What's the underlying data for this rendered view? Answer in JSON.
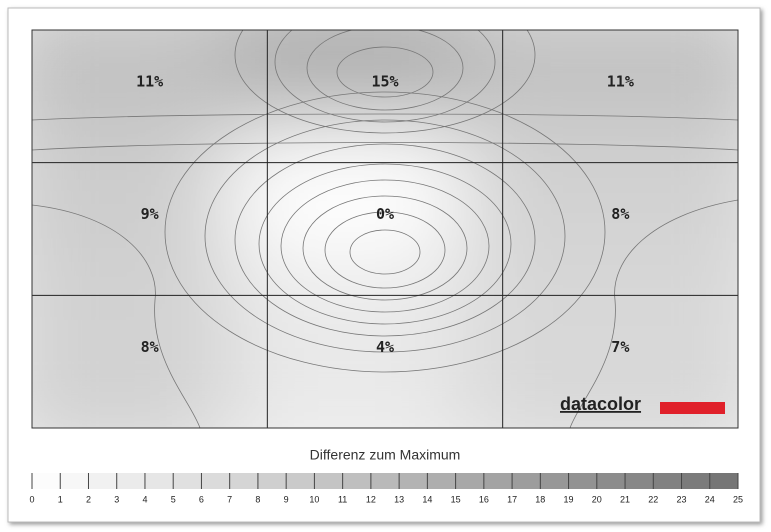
{
  "chart_data": {
    "type": "heatmap",
    "rows": 3,
    "cols": 3,
    "values": [
      [
        11,
        15,
        11
      ],
      [
        9,
        0,
        8
      ],
      [
        8,
        4,
        7
      ]
    ],
    "value_labels": [
      [
        "11%",
        "15%",
        "11%"
      ],
      [
        "9%",
        "0%",
        "8%"
      ],
      [
        "8%",
        "4%",
        "7%"
      ]
    ],
    "colorbar_title": "Differenz zum Maximum",
    "clim": [
      0,
      25
    ],
    "cticks": [
      0,
      1,
      2,
      3,
      4,
      5,
      6,
      7,
      8,
      9,
      10,
      11,
      12,
      13,
      14,
      15,
      16,
      17,
      18,
      19,
      20,
      21,
      22,
      23,
      24,
      25
    ],
    "logo": "datacolor"
  }
}
